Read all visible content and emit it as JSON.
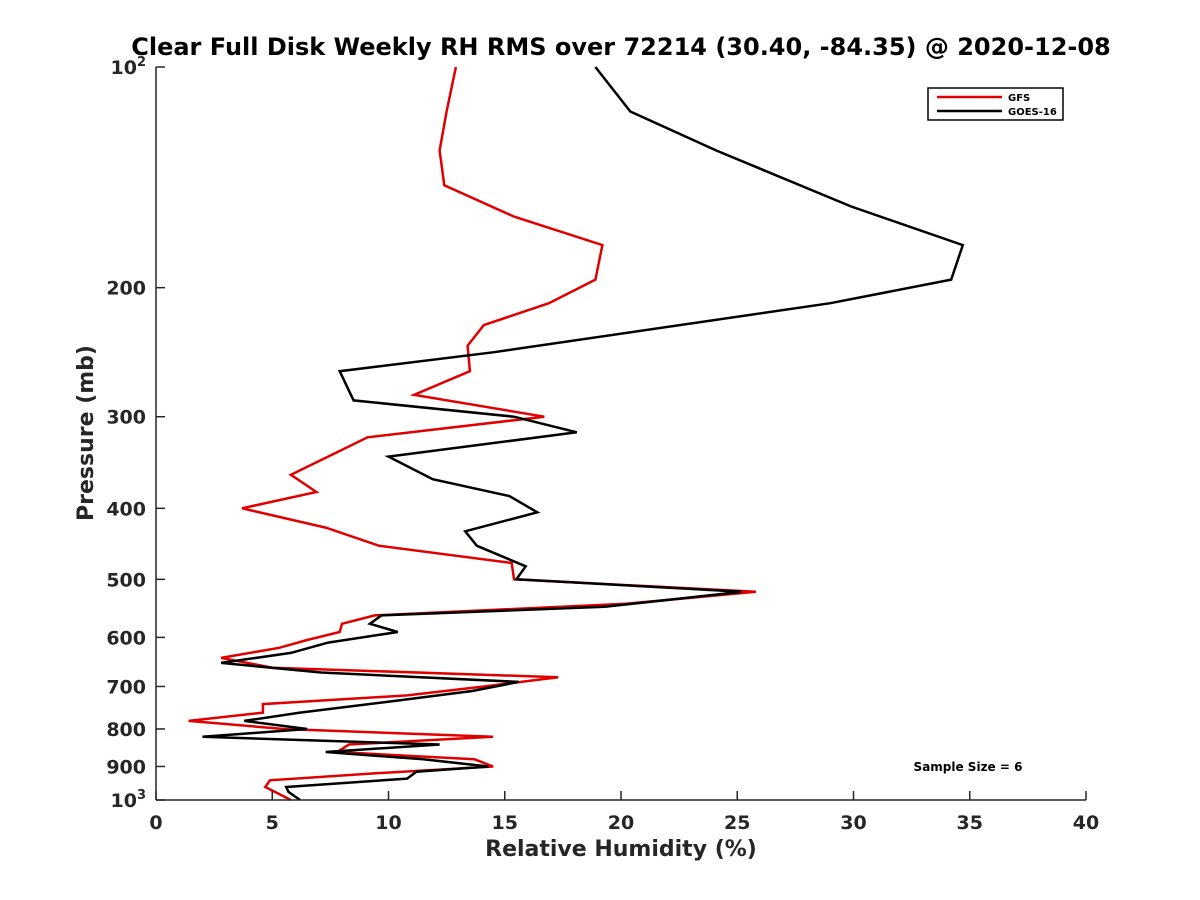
{
  "chart_data": {
    "type": "line",
    "title": "Clear Full Disk Weekly RH RMS over 72214 (30.40, -84.35) @ 2020-12-08",
    "xlabel": "Relative Humidity (%)",
    "ylabel": "Pressure (mb)",
    "xlim": [
      0,
      40
    ],
    "ylim": [
      100,
      1000
    ],
    "yscale": "log",
    "y_reversed": true,
    "x_ticks": [
      0,
      5,
      10,
      15,
      20,
      25,
      30,
      35,
      40
    ],
    "x_tick_labels": [
      "0",
      "5",
      "10",
      "15",
      "20",
      "25",
      "30",
      "35",
      "40"
    ],
    "y_ticks": [
      200,
      300,
      400,
      500,
      600,
      700,
      800,
      900
    ],
    "y_tick_labels": [
      "200",
      "300",
      "400",
      "500",
      "600",
      "700",
      "800",
      "900"
    ],
    "y_end_labels": [
      {
        "value": 100,
        "base": "10",
        "exp": "2"
      },
      {
        "value": 1000,
        "base": "10",
        "exp": "3"
      }
    ],
    "legend": {
      "position": "top-right"
    },
    "annotation": "Sample Size = 6",
    "series": [
      {
        "name": "GFS",
        "color": "#e00000",
        "x": [
          12.9,
          12.5,
          12.2,
          12.4,
          15.4,
          19.2,
          18.9,
          16.9,
          14.1,
          13.4,
          13.5,
          11.1,
          16.7,
          9.1,
          7.4,
          5.8,
          6.9,
          3.7,
          7.3,
          9.6,
          15.3,
          15.4,
          25.8,
          20.2,
          9.4,
          8.0,
          7.9,
          6.5,
          5.3,
          2.8,
          5.0,
          17.3,
          14.1,
          10.8,
          4.6,
          4.6,
          1.4,
          5.5,
          14.5,
          8.3,
          7.8,
          13.7,
          14.5,
          9.3,
          4.9,
          4.7,
          5.8
        ],
        "y": [
          100,
          115,
          130,
          145,
          160,
          175,
          195,
          210,
          225,
          240,
          260,
          280,
          300,
          320,
          340,
          360,
          380,
          400,
          425,
          450,
          475,
          500,
          520,
          540,
          560,
          575,
          590,
          605,
          620,
          640,
          660,
          680,
          700,
          720,
          740,
          760,
          780,
          800,
          820,
          840,
          860,
          880,
          900,
          920,
          940,
          960,
          1000
        ]
      },
      {
        "name": "GOES-16",
        "color": "#000000",
        "x": [
          18.9,
          20.4,
          24.1,
          29.9,
          34.7,
          34.2,
          29.0,
          14.5,
          7.9,
          8.5,
          15.4,
          18.1,
          10.0,
          11.9,
          15.2,
          16.4,
          13.3,
          13.8,
          15.9,
          15.5,
          25.2,
          19.3,
          9.7,
          9.2,
          10.4,
          7.4,
          5.8,
          2.8,
          7.1,
          15.6,
          13.6,
          9.9,
          6.2,
          3.8,
          6.5,
          2.0,
          12.2,
          7.3,
          11.5,
          14.3,
          11.2,
          10.8,
          5.6,
          5.7,
          6.2
        ],
        "y": [
          100,
          115,
          130,
          155,
          175,
          195,
          210,
          245,
          260,
          285,
          300,
          315,
          340,
          365,
          385,
          405,
          430,
          450,
          480,
          500,
          520,
          545,
          560,
          575,
          590,
          610,
          630,
          650,
          670,
          690,
          710,
          735,
          760,
          780,
          800,
          820,
          840,
          860,
          880,
          900,
          915,
          935,
          960,
          975,
          1000
        ]
      }
    ]
  }
}
